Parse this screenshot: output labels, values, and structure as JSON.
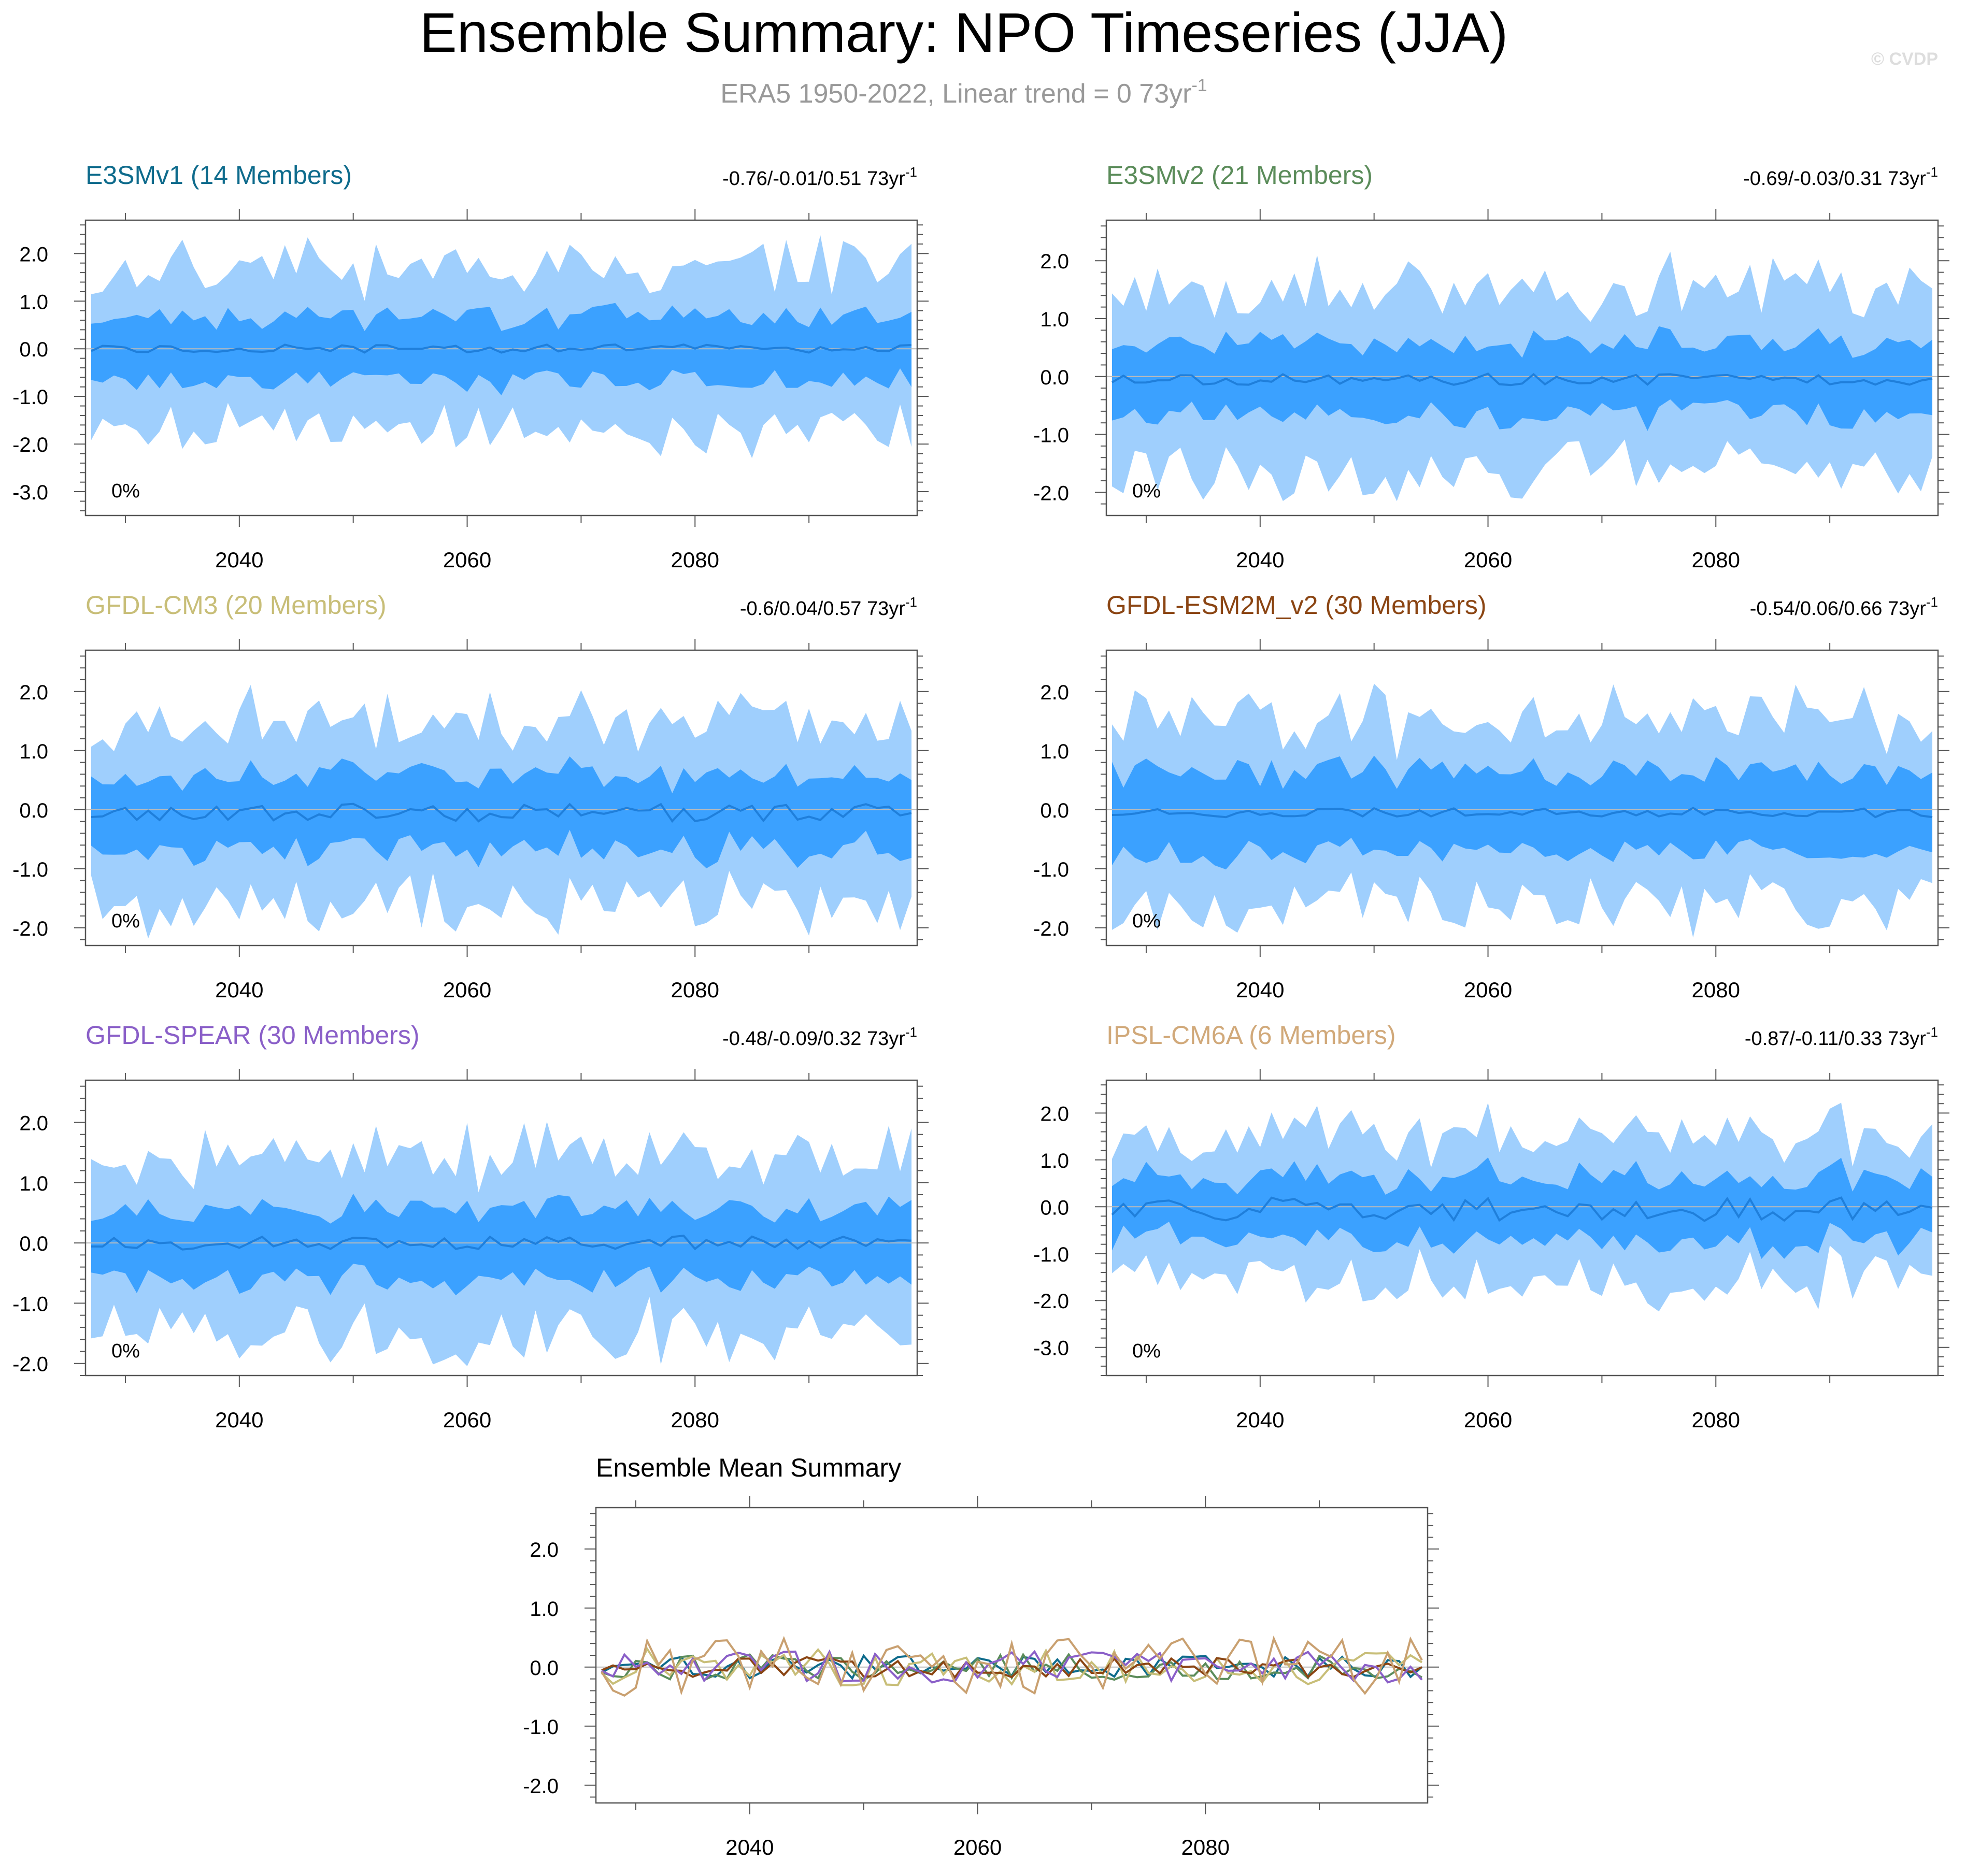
{
  "figure": {
    "title": "Ensemble Summary: NPO Timeseries (JJA)",
    "subtitle": "ERA5 1950-2022, Linear trend = 0 73yr",
    "subtitle_sup": "-1",
    "watermark": "© CVDP",
    "unit_text": "73yr",
    "unit_sup": "-1"
  },
  "colors": {
    "band_outer": "#9fcffd",
    "band_inner": "#3ba1ff",
    "mean_line": "#1f7fdb",
    "axis": "#555555",
    "zero_line": "#bbbbbb",
    "title_gray": "#999999",
    "watermark": "#dddddd"
  },
  "chart_data": [
    {
      "type": "area",
      "model": "E3SMv1 (14 Members)",
      "title_color": "#0e6b8c",
      "trend": "-0.76/-0.01/0.51",
      "pct_label": "0%",
      "x_start": 2027,
      "x_end": 2099,
      "xlim": [
        2026.5,
        2099.5
      ],
      "ylim": [
        -3.5,
        2.7
      ],
      "yticks": [
        2.0,
        1.0,
        0.0,
        -1.0,
        -2.0,
        -3.0
      ],
      "xticks": [
        2040,
        2060,
        2080
      ],
      "seed": 11,
      "outer_amp": 1.55,
      "inner_amp": 0.75,
      "mean_amp": 0.09,
      "mean_offset": 0.0
    },
    {
      "type": "area",
      "model": "E3SMv2 (21 Members)",
      "title_color": "#5b8c5a",
      "trend": "-0.69/-0.03/0.31",
      "pct_label": "0%",
      "x_start": 2027,
      "x_end": 2099,
      "xlim": [
        2026.5,
        2099.5
      ],
      "ylim": [
        -2.4,
        2.7
      ],
      "yticks": [
        2.0,
        1.0,
        0.0,
        -1.0,
        -2.0
      ],
      "xticks": [
        2040,
        2060,
        2080
      ],
      "seed": 23,
      "outer_amp": 1.4,
      "inner_amp": 0.7,
      "mean_amp": 0.1,
      "mean_offset": -0.05
    },
    {
      "type": "area",
      "model": "GFDL-CM3 (20 Members)",
      "title_color": "#c8be78",
      "trend": "-0.6/0.04/0.57",
      "pct_label": "0%",
      "x_start": 2027,
      "x_end": 2099,
      "xlim": [
        2026.5,
        2099.5
      ],
      "ylim": [
        -2.3,
        2.7
      ],
      "yticks": [
        2.0,
        1.0,
        0.0,
        -1.0,
        -2.0
      ],
      "xticks": [
        2040,
        2060,
        2080
      ],
      "seed": 37,
      "outer_amp": 1.35,
      "inner_amp": 0.7,
      "mean_amp": 0.15,
      "mean_offset": -0.05
    },
    {
      "type": "area",
      "model": "GFDL-ESM2M_v2 (30 Members)",
      "title_color": "#8b4513",
      "trend": "-0.54/0.06/0.66",
      "pct_label": "0%",
      "x_start": 2027,
      "x_end": 2099,
      "xlim": [
        2026.5,
        2099.5
      ],
      "ylim": [
        -2.3,
        2.7
      ],
      "yticks": [
        2.0,
        1.0,
        0.0,
        -1.0,
        -2.0
      ],
      "xticks": [
        2040,
        2060,
        2080
      ],
      "seed": 41,
      "outer_amp": 1.35,
      "inner_amp": 0.75,
      "mean_amp": 0.08,
      "mean_offset": -0.05
    },
    {
      "type": "area",
      "model": "GFDL-SPEAR (30 Members)",
      "title_color": "#8a5fc8",
      "trend": "-0.48/-0.09/0.32",
      "pct_label": "0%",
      "x_start": 2027,
      "x_end": 2099,
      "xlim": [
        2026.5,
        2099.5
      ],
      "ylim": [
        -2.2,
        2.7
      ],
      "yticks": [
        2.0,
        1.0,
        0.0,
        -1.0,
        -2.0
      ],
      "xticks": [
        2040,
        2060,
        2080
      ],
      "seed": 53,
      "outer_amp": 1.35,
      "inner_amp": 0.65,
      "mean_amp": 0.12,
      "mean_offset": 0.0
    },
    {
      "type": "area",
      "model": "IPSL-CM6A (6 Members)",
      "title_color": "#d1a97a",
      "trend": "-0.87/-0.11/0.33",
      "pct_label": "0%",
      "x_start": 2027,
      "x_end": 2099,
      "xlim": [
        2026.5,
        2099.5
      ],
      "ylim": [
        -3.6,
        2.7
      ],
      "yticks": [
        2.0,
        1.0,
        0.0,
        -1.0,
        -2.0,
        -3.0
      ],
      "xticks": [
        2040,
        2060,
        2080
      ],
      "seed": 67,
      "outer_amp": 1.3,
      "inner_amp": 0.75,
      "mean_amp": 0.25,
      "mean_offset": -0.05
    },
    {
      "type": "line",
      "title": "Ensemble Mean Summary",
      "x_start": 2027,
      "x_end": 2099,
      "xlim": [
        2026.5,
        2099.5
      ],
      "ylim": [
        -2.3,
        2.7
      ],
      "yticks": [
        2.0,
        1.0,
        0.0,
        -1.0,
        -2.0
      ],
      "xticks": [
        2040,
        2060,
        2080
      ],
      "series": [
        {
          "name": "E3SMv1",
          "color": "#0e6b8c",
          "seed": 11,
          "amp": 0.09,
          "offset": 0.0
        },
        {
          "name": "E3SMv2",
          "color": "#5b8c5a",
          "seed": 23,
          "amp": 0.1,
          "offset": 0.0
        },
        {
          "name": "GFDL-CM3",
          "color": "#c8be78",
          "seed": 37,
          "amp": 0.14,
          "offset": 0.0
        },
        {
          "name": "GFDL-ESM2M_v2",
          "color": "#8b4513",
          "seed": 41,
          "amp": 0.08,
          "offset": 0.0
        },
        {
          "name": "GFDL-SPEAR",
          "color": "#8a5fc8",
          "seed": 53,
          "amp": 0.12,
          "offset": 0.0
        },
        {
          "name": "IPSL-CM6A",
          "color": "#c9a070",
          "seed": 67,
          "amp": 0.22,
          "offset": 0.0
        }
      ]
    }
  ]
}
